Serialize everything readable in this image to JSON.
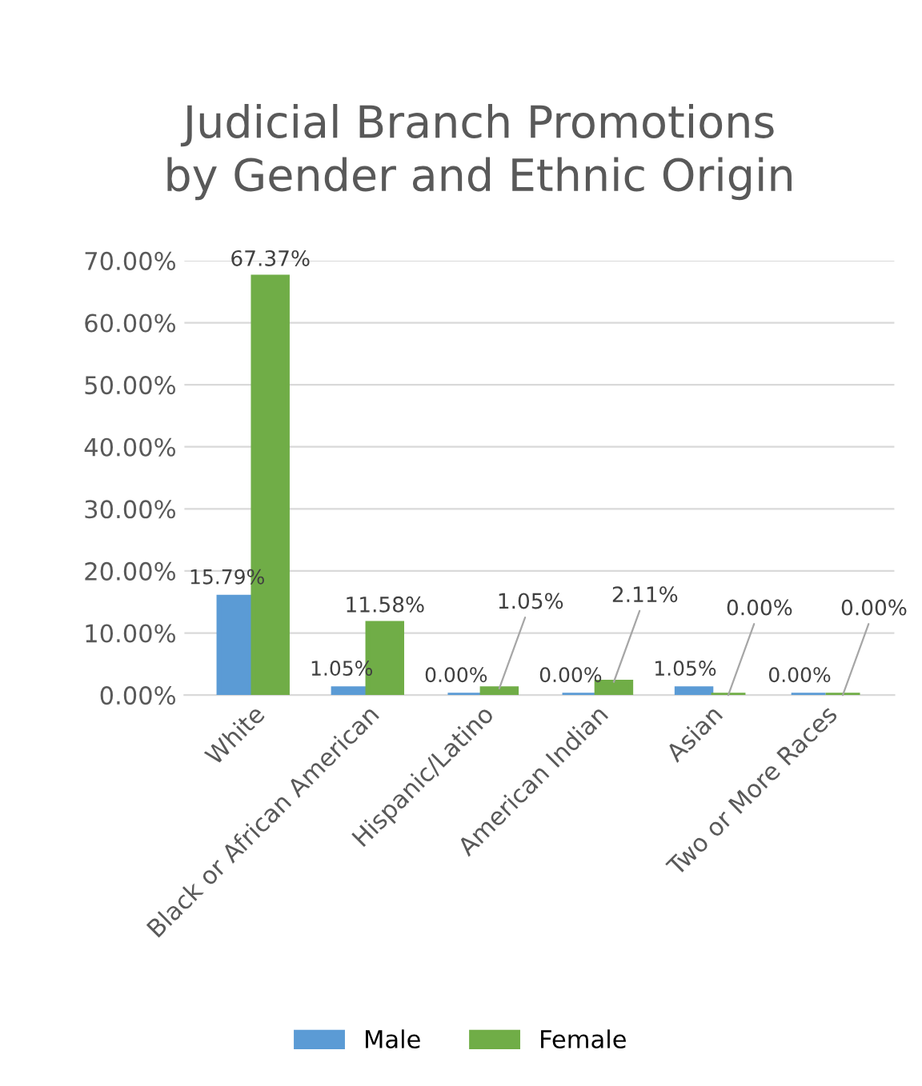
{
  "chart_data": {
    "type": "bar",
    "title": "Judicial Branch Promotions\nby Gender and Ethnic Origin",
    "categories": [
      "White",
      "Black or African American",
      "Hispanic/Latino",
      "American Indian",
      "Asian",
      "Two or More Races"
    ],
    "series": [
      {
        "name": "Male",
        "color": "#5b9bd5",
        "values": [
          15.79,
          1.05,
          0.0,
          0.0,
          1.05,
          0.0
        ],
        "value_labels": [
          "15.79%",
          "1.05%",
          "0.00%",
          "0.00%",
          "1.05%",
          "0.00%"
        ]
      },
      {
        "name": "Female",
        "color": "#70ad47",
        "values": [
          67.37,
          11.58,
          1.05,
          2.11,
          0.0,
          0.0
        ],
        "value_labels": [
          "67.37%",
          "11.58%",
          "1.05%",
          "2.11%",
          "0.00%",
          "0.00%"
        ]
      }
    ],
    "ylim": [
      0,
      70
    ],
    "yticks": [
      {
        "value": 0,
        "label": "0.00%"
      },
      {
        "value": 10,
        "label": "10.00%"
      },
      {
        "value": 20,
        "label": "20.00%"
      },
      {
        "value": 30,
        "label": "30.00%"
      },
      {
        "value": 40,
        "label": "40.00%"
      },
      {
        "value": 50,
        "label": "50.00%"
      },
      {
        "value": 60,
        "label": "60.00%"
      },
      {
        "value": 70,
        "label": "70.00%"
      }
    ],
    "grid": "y",
    "legend": "bottom"
  }
}
